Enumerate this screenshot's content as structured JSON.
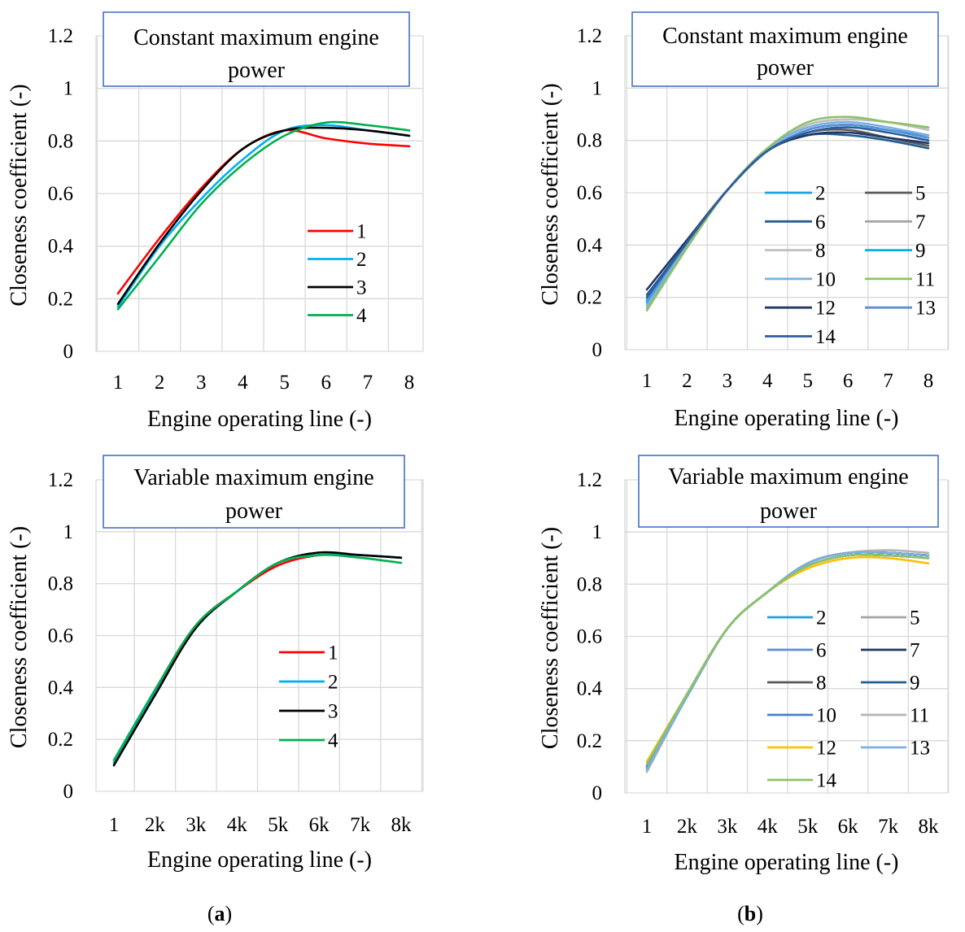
{
  "chart_data": [
    {
      "type": "line",
      "title": "Constant maximum engine power",
      "title_lines": [
        "Constant maximum engine",
        "power"
      ],
      "xlabel": "Engine operating line  (-)",
      "ylabel": "Closeness coefficient (-)",
      "x": [
        1,
        2,
        3,
        4,
        5,
        6,
        7,
        8
      ],
      "x_tick_labels": [
        "1",
        "2",
        "3",
        "4",
        "5",
        "6",
        "7",
        "8"
      ],
      "y_tick_labels": [
        "0",
        "0.2",
        "0.4",
        "0.6",
        "0.8",
        "1",
        "1.2"
      ],
      "ylim": [
        0,
        1.2
      ],
      "grid": true,
      "legend_position": "right",
      "series": [
        {
          "name": "1",
          "color": "#ff0000",
          "values": [
            0.22,
            0.43,
            0.62,
            0.77,
            0.84,
            0.81,
            0.79,
            0.78
          ]
        },
        {
          "name": "2",
          "color": "#00b0f0",
          "values": [
            0.17,
            0.4,
            0.58,
            0.73,
            0.84,
            0.86,
            0.84,
            0.82
          ]
        },
        {
          "name": "3",
          "color": "#000000",
          "values": [
            0.18,
            0.41,
            0.61,
            0.77,
            0.84,
            0.85,
            0.84,
            0.82
          ]
        },
        {
          "name": "4",
          "color": "#00b050",
          "values": [
            0.16,
            0.36,
            0.56,
            0.71,
            0.82,
            0.87,
            0.86,
            0.84
          ]
        }
      ]
    },
    {
      "type": "line",
      "title": "Constant maximum engine power",
      "title_lines": [
        "Constant maximum engine",
        "power"
      ],
      "xlabel": "Engine operating line (-)",
      "ylabel": "Closeness coefficient (-)",
      "x": [
        1,
        2,
        3,
        4,
        5,
        6,
        7,
        8
      ],
      "x_tick_labels": [
        "1",
        "2",
        "3",
        "4",
        "5",
        "6",
        "7",
        "8"
      ],
      "y_tick_labels": [
        "0",
        "0.2",
        "0.4",
        "0.6",
        "0.8",
        "1",
        "1.2"
      ],
      "ylim": [
        0,
        1.2
      ],
      "grid": true,
      "legend_position": "bottom-right",
      "series": [
        {
          "name": "2",
          "color": "#1e9fe0",
          "values": [
            0.18,
            0.41,
            0.61,
            0.76,
            0.84,
            0.86,
            0.84,
            0.81
          ]
        },
        {
          "name": "5",
          "color": "#595959",
          "values": [
            0.19,
            0.41,
            0.61,
            0.76,
            0.83,
            0.84,
            0.81,
            0.78
          ]
        },
        {
          "name": "6",
          "color": "#255e91",
          "values": [
            0.21,
            0.41,
            0.61,
            0.76,
            0.82,
            0.82,
            0.8,
            0.77
          ]
        },
        {
          "name": "7",
          "color": "#a5a5a5",
          "values": [
            0.16,
            0.4,
            0.61,
            0.77,
            0.86,
            0.88,
            0.87,
            0.85
          ]
        },
        {
          "name": "8",
          "color": "#bfbfbf",
          "values": [
            0.17,
            0.4,
            0.61,
            0.77,
            0.86,
            0.88,
            0.87,
            0.84
          ]
        },
        {
          "name": "9",
          "color": "#00b0f0",
          "values": [
            0.18,
            0.41,
            0.61,
            0.76,
            0.84,
            0.86,
            0.84,
            0.82
          ]
        },
        {
          "name": "10",
          "color": "#7ab0e0",
          "values": [
            0.17,
            0.4,
            0.61,
            0.77,
            0.85,
            0.87,
            0.85,
            0.82
          ]
        },
        {
          "name": "11",
          "color": "#8dc26a",
          "values": [
            0.15,
            0.39,
            0.61,
            0.77,
            0.87,
            0.89,
            0.87,
            0.85
          ]
        },
        {
          "name": "12",
          "color": "#203864",
          "values": [
            0.23,
            0.42,
            0.61,
            0.76,
            0.82,
            0.83,
            0.81,
            0.79
          ]
        },
        {
          "name": "13",
          "color": "#5b8fd8",
          "values": [
            0.19,
            0.41,
            0.61,
            0.76,
            0.84,
            0.86,
            0.84,
            0.81
          ]
        },
        {
          "name": "14",
          "color": "#2e5d9b",
          "values": [
            0.2,
            0.41,
            0.61,
            0.76,
            0.83,
            0.85,
            0.83,
            0.8
          ]
        }
      ],
      "legend_order": [
        "2",
        "5",
        "6",
        "7",
        "8",
        "9",
        "10",
        "11",
        "12",
        "13",
        "14"
      ]
    },
    {
      "type": "line",
      "title": "Variable maximum engine power",
      "title_lines": [
        "Variable maximum engine",
        "power"
      ],
      "xlabel": "Engine operating line (-)",
      "ylabel": "Closeness coefficient (-)",
      "x": [
        1,
        2,
        3,
        4,
        5,
        6,
        7,
        8
      ],
      "x_tick_labels": [
        "1",
        "2k",
        "3k",
        "4k",
        "5k",
        "6k",
        "7k",
        "8k"
      ],
      "y_tick_labels": [
        "0",
        "0.2",
        "0.4",
        "0.6",
        "0.8",
        "1",
        "1.2"
      ],
      "ylim": [
        0,
        1.2
      ],
      "grid": true,
      "legend_position": "right",
      "series": [
        {
          "name": "1",
          "color": "#ff0000",
          "values": [
            0.11,
            0.39,
            0.64,
            0.77,
            0.87,
            0.91,
            0.91,
            0.9
          ]
        },
        {
          "name": "2",
          "color": "#00b0f0",
          "values": [
            0.11,
            0.38,
            0.63,
            0.77,
            0.88,
            0.91,
            0.91,
            0.9
          ]
        },
        {
          "name": "3",
          "color": "#000000",
          "values": [
            0.1,
            0.37,
            0.63,
            0.77,
            0.88,
            0.92,
            0.91,
            0.9
          ]
        },
        {
          "name": "4",
          "color": "#00b050",
          "values": [
            0.12,
            0.39,
            0.64,
            0.77,
            0.88,
            0.91,
            0.9,
            0.88
          ]
        }
      ]
    },
    {
      "type": "line",
      "title": "Variable maximum engine power",
      "title_lines": [
        "Variable maximum engine",
        "power"
      ],
      "xlabel": "Engine operating line (-)",
      "ylabel": "Closeness coefficient (-)",
      "x": [
        1,
        2,
        3,
        4,
        5,
        6,
        7,
        8
      ],
      "x_tick_labels": [
        "1",
        "2k",
        "3k",
        "4k",
        "5k",
        "6k",
        "7k",
        "8k"
      ],
      "y_tick_labels": [
        "0",
        "0.2",
        "0.4",
        "0.6",
        "0.8",
        "1",
        "1.2"
      ],
      "ylim": [
        0,
        1.2
      ],
      "grid": true,
      "legend_position": "bottom-right",
      "series": [
        {
          "name": "2",
          "color": "#1e9fe0",
          "values": [
            0.09,
            0.37,
            0.63,
            0.77,
            0.87,
            0.91,
            0.91,
            0.9
          ]
        },
        {
          "name": "5",
          "color": "#a5a5a5",
          "values": [
            0.09,
            0.37,
            0.63,
            0.77,
            0.88,
            0.92,
            0.92,
            0.91
          ]
        },
        {
          "name": "6",
          "color": "#5b8fd8",
          "values": [
            0.1,
            0.37,
            0.63,
            0.77,
            0.87,
            0.91,
            0.91,
            0.9
          ]
        },
        {
          "name": "7",
          "color": "#203864",
          "values": [
            0.09,
            0.37,
            0.63,
            0.77,
            0.88,
            0.92,
            0.92,
            0.91
          ]
        },
        {
          "name": "8",
          "color": "#595959",
          "values": [
            0.1,
            0.37,
            0.63,
            0.77,
            0.88,
            0.92,
            0.92,
            0.91
          ]
        },
        {
          "name": "9",
          "color": "#255e91",
          "values": [
            0.09,
            0.37,
            0.63,
            0.77,
            0.88,
            0.92,
            0.92,
            0.91
          ]
        },
        {
          "name": "10",
          "color": "#4a7fd0",
          "values": [
            0.1,
            0.37,
            0.63,
            0.77,
            0.87,
            0.91,
            0.91,
            0.9
          ]
        },
        {
          "name": "11",
          "color": "#b4b4b4",
          "values": [
            0.08,
            0.37,
            0.63,
            0.77,
            0.88,
            0.92,
            0.93,
            0.92
          ]
        },
        {
          "name": "12",
          "color": "#ffc000",
          "values": [
            0.12,
            0.38,
            0.63,
            0.77,
            0.86,
            0.9,
            0.9,
            0.88
          ]
        },
        {
          "name": "13",
          "color": "#7ab0e0",
          "values": [
            0.09,
            0.37,
            0.63,
            0.77,
            0.88,
            0.92,
            0.92,
            0.91
          ]
        },
        {
          "name": "14",
          "color": "#8dc26a",
          "values": [
            0.11,
            0.38,
            0.63,
            0.77,
            0.87,
            0.91,
            0.91,
            0.9
          ]
        }
      ],
      "legend_order": [
        "2",
        "5",
        "6",
        "7",
        "8",
        "9",
        "10",
        "11",
        "12",
        "13",
        "14"
      ]
    }
  ],
  "captions": {
    "a": "a",
    "b": "b"
  }
}
